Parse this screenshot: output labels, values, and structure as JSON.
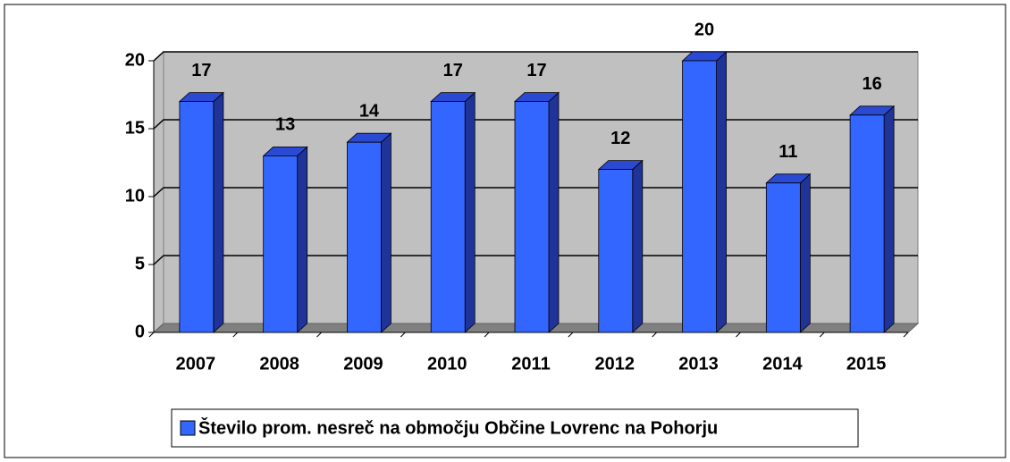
{
  "chart_data": {
    "type": "bar3d",
    "categories": [
      "2007",
      "2008",
      "2009",
      "2010",
      "2011",
      "2012",
      "2013",
      "2014",
      "2015"
    ],
    "series": [
      {
        "name": "Število prom. nesreč na območju Občine Lovrenc na Pohorju",
        "color": "#3366ff",
        "values": [
          17,
          13,
          14,
          17,
          17,
          12,
          20,
          11,
          16
        ]
      }
    ],
    "ylim": [
      0,
      20
    ],
    "yticks": [
      0,
      5,
      10,
      15,
      20
    ],
    "grid": true,
    "legend": "bottom"
  }
}
